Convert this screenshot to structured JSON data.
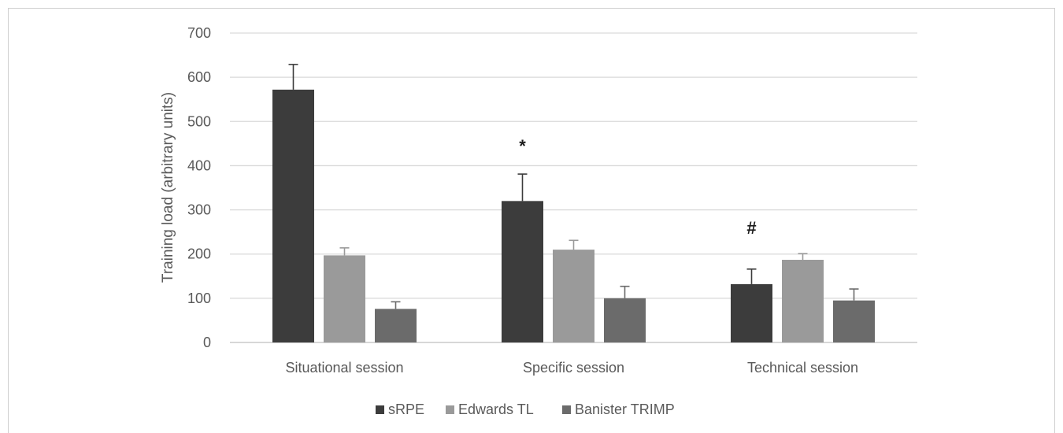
{
  "chart_data": {
    "type": "bar",
    "title": "",
    "xlabel": "",
    "ylabel": "Training load (arbitrary units)",
    "ylim": [
      0,
      700
    ],
    "yticks": [
      0,
      100,
      200,
      300,
      400,
      500,
      600,
      700
    ],
    "grid": true,
    "legend": "bottom",
    "categories": [
      "Situational session",
      "Specific session",
      "Technical session"
    ],
    "series": [
      {
        "name": "sRPE",
        "color": "#3c3c3c",
        "values": [
          572,
          320,
          132
        ],
        "errors": [
          57,
          61,
          34
        ]
      },
      {
        "name": "Edwards TL",
        "color": "#9a9a9a",
        "values": [
          197,
          210,
          187
        ],
        "errors": [
          17,
          21,
          14
        ]
      },
      {
        "name": "Banister TRIMP",
        "color": "#6b6b6b",
        "values": [
          76,
          100,
          95
        ],
        "errors": [
          16,
          27,
          26
        ]
      }
    ],
    "annotations": [
      {
        "text": "*",
        "category": 1,
        "series": 0,
        "y": 445
      },
      {
        "text": "#",
        "category": 2,
        "series": 0,
        "y": 260
      }
    ]
  }
}
